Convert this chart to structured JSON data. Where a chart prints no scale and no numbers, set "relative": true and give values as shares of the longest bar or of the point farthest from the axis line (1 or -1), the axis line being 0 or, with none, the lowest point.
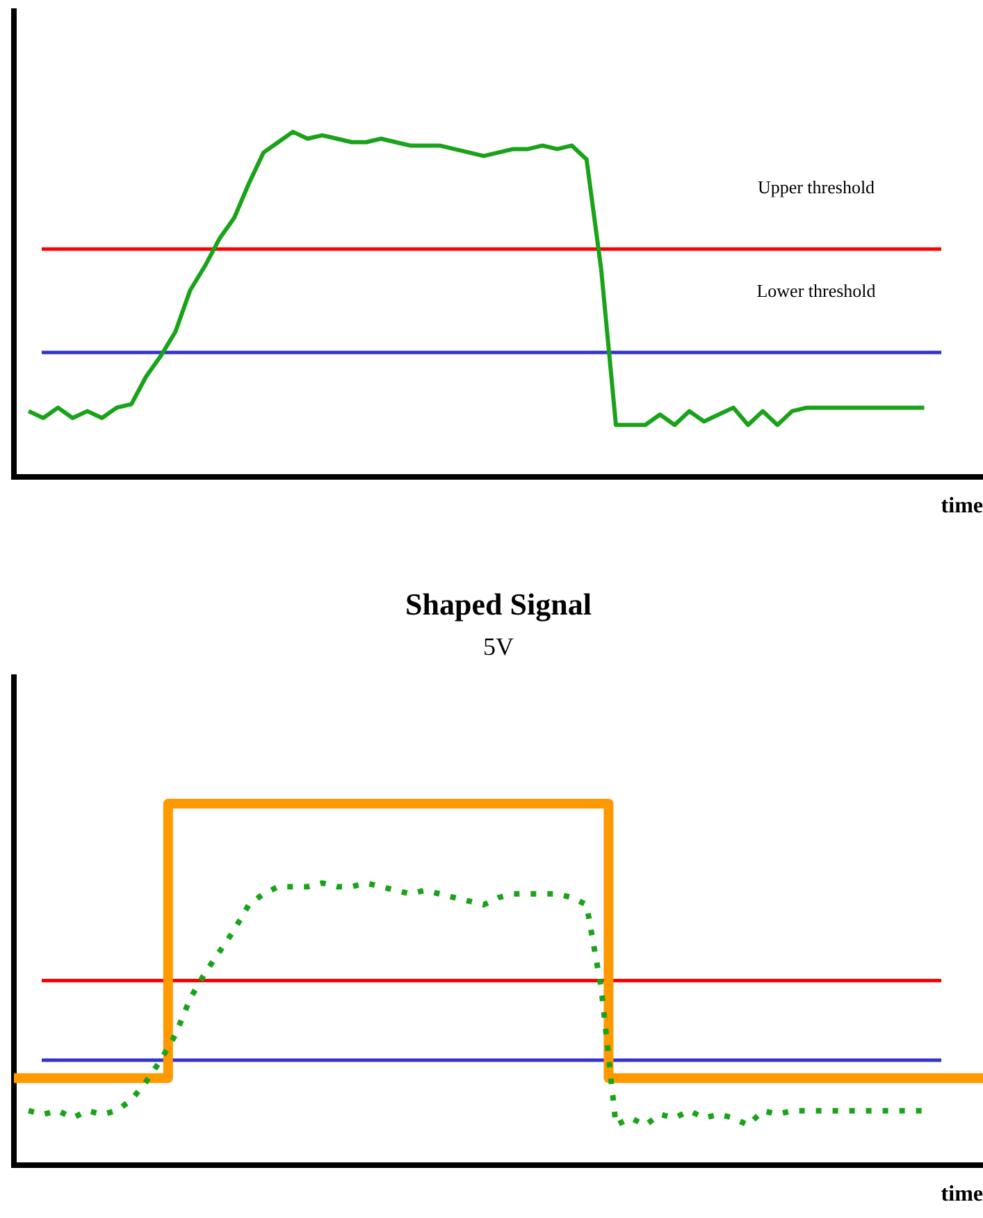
{
  "chart_data": [
    {
      "type": "line",
      "relative": true,
      "xlabel": "time",
      "legend": false,
      "grid": false,
      "tick_labels": false,
      "categories": [
        null,
        null,
        null,
        null,
        null,
        null,
        null,
        null,
        null,
        null,
        null,
        null,
        null,
        null,
        null,
        null,
        null,
        null,
        null,
        null,
        null,
        null,
        null,
        null,
        null,
        null,
        null,
        null,
        null,
        null,
        null,
        null,
        null,
        null,
        null,
        null,
        null,
        null,
        null,
        null,
        null,
        null,
        null,
        null,
        null,
        null,
        null,
        null,
        null,
        null,
        null,
        null,
        null,
        null,
        null,
        null,
        null,
        null,
        null,
        null,
        null,
        null,
        null,
        null,
        null,
        null,
        null
      ],
      "series": [
        {
          "type": "line",
          "color": "#1aa31a",
          "values": [
            null,
            0.19,
            0.17,
            0.2,
            0.17,
            0.19,
            0.17,
            0.2,
            0.21,
            0.29,
            0.35,
            0.42,
            0.54,
            0.61,
            0.69,
            0.75,
            0.85,
            0.94,
            0.97,
            1,
            0.98,
            0.99,
            0.98,
            0.97,
            0.97,
            0.98,
            0.97,
            0.96,
            0.96,
            0.96,
            0.95,
            0.94,
            0.93,
            0.94,
            0.95,
            0.95,
            0.96,
            0.95,
            0.96,
            0.92,
            0.6,
            0.15,
            0.15,
            0.15,
            0.18,
            0.15,
            0.19,
            0.16,
            0.18,
            0.2,
            0.15,
            0.19,
            0.15,
            0.19,
            0.2,
            0.2,
            0.2,
            0.2,
            0.2,
            0.2,
            0.2,
            0.2,
            0.2,
            null,
            null,
            null,
            null
          ]
        }
      ],
      "ref_lines": [
        {
          "axis": "y",
          "value": 0.66,
          "label": "Upper threshold",
          "color": "#ff0000"
        },
        {
          "axis": "y",
          "value": 0.36,
          "label": "Lower threshold",
          "color": "#3333cc"
        }
      ]
    },
    {
      "type": "line",
      "relative": true,
      "title": "Shaped Signal",
      "xlabel": "time",
      "legend": false,
      "grid": false,
      "tick_labels": false,
      "annotations": [
        "5V"
      ],
      "categories": [
        null,
        null,
        null,
        null,
        null,
        null,
        null,
        null,
        null,
        null,
        null,
        null,
        null,
        null,
        null,
        null,
        null,
        null,
        null,
        null,
        null,
        null,
        null,
        null,
        null,
        null,
        null,
        null,
        null,
        null,
        null,
        null,
        null,
        null,
        null,
        null,
        null,
        null,
        null,
        null,
        null,
        null,
        null,
        null,
        null,
        null,
        null,
        null,
        null,
        null,
        null,
        null,
        null,
        null,
        null,
        null,
        null,
        null,
        null,
        null,
        null,
        null,
        null,
        null,
        null,
        null,
        null
      ],
      "series": [
        {
          "type": "line",
          "color": "#1aa31a",
          "line_style": "dotted",
          "values": [
            null,
            0.15,
            0.14,
            0.15,
            0.13,
            0.15,
            0.14,
            0.15,
            0.18,
            0.23,
            0.29,
            0.36,
            0.46,
            0.53,
            0.59,
            0.65,
            0.72,
            0.75,
            0.77,
            0.77,
            0.77,
            0.78,
            0.77,
            0.77,
            0.78,
            0.77,
            0.76,
            0.75,
            0.76,
            0.75,
            0.74,
            0.73,
            0.72,
            0.74,
            0.75,
            0.75,
            0.75,
            0.75,
            0.74,
            0.72,
            0.49,
            0.11,
            0.13,
            0.11,
            0.14,
            0.13,
            0.15,
            0.13,
            0.14,
            0.13,
            0.11,
            0.15,
            0.14,
            0.15,
            0.15,
            0.15,
            0.15,
            0.15,
            0.15,
            0.15,
            0.15,
            0.15,
            0.15,
            null,
            null,
            null,
            null
          ]
        },
        {
          "type": "step",
          "color": "#ff9900",
          "values": [
            0.24,
            0.24,
            0.24,
            0.24,
            0.24,
            0.24,
            0.24,
            0.24,
            0.24,
            0.24,
            0.24,
            1,
            1,
            1,
            1,
            1,
            1,
            1,
            1,
            1,
            1,
            1,
            1,
            1,
            1,
            1,
            1,
            1,
            1,
            1,
            1,
            1,
            1,
            1,
            1,
            1,
            1,
            1,
            1,
            1,
            1,
            0.24,
            0.24,
            0.24,
            0.24,
            0.24,
            0.24,
            0.24,
            0.24,
            0.24,
            0.24,
            0.24,
            0.24,
            0.24,
            0.24,
            0.24,
            0.24,
            0.24,
            0.24,
            0.24,
            0.24,
            0.24,
            0.24,
            0.24,
            0.24,
            0.24,
            0.24
          ]
        }
      ],
      "ref_lines": [
        {
          "axis": "y",
          "value": 0.51,
          "color": "#ff0000"
        },
        {
          "axis": "y",
          "value": 0.29,
          "color": "#3333cc"
        }
      ]
    }
  ]
}
